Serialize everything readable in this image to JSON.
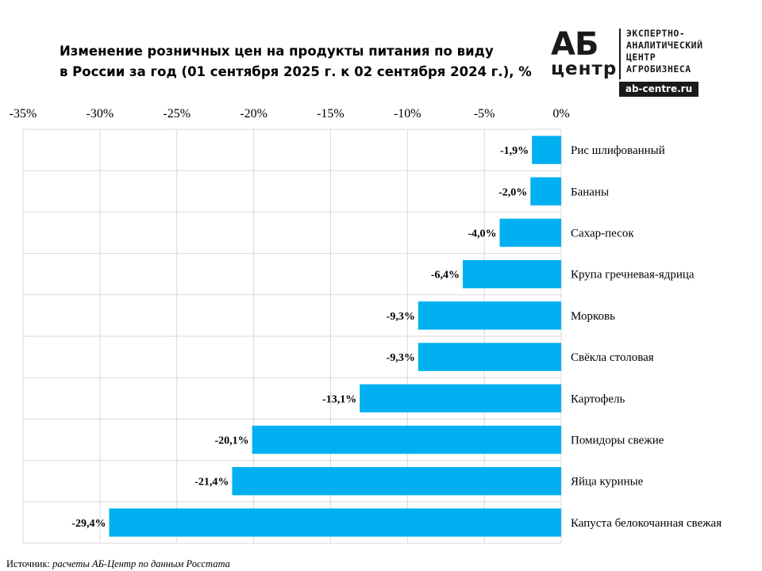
{
  "title_lines": [
    "Изменение розничных цен на продукты питания по виду",
    "в России за год (01 сентября 2025 г. к 02 сентября 2024 г.), %"
  ],
  "logo": {
    "mark_top": "АБ",
    "mark_bottom": "центр",
    "lines": [
      "ЭКСПЕРТНО-",
      "АНАЛИТИЧЕСКИЙ",
      "ЦЕНТР",
      "АГРОБИЗНЕСА"
    ],
    "url": "ab-centre.ru"
  },
  "source": {
    "label": "Источник:",
    "text": " расчеты АБ-Центр по данным Росстата"
  },
  "colors": {
    "bar": "#00b0f0",
    "grid": "#d9d9d9"
  },
  "chart_data": {
    "type": "bar",
    "orientation": "horizontal",
    "x_axis_position": "top",
    "xlim": [
      -35,
      0
    ],
    "x_ticks": [
      -35,
      -30,
      -25,
      -20,
      -15,
      -10,
      -5,
      0
    ],
    "x_tick_labels": [
      "-35%",
      "-30%",
      "-25%",
      "-20%",
      "-15%",
      "-10%",
      "-5%",
      "0%"
    ],
    "grid": true,
    "categories": [
      "Рис шлифованный",
      "Бананы",
      "Сахар-песок",
      "Крупа гречневая-ядрица",
      "Морковь",
      "Свёкла столовая",
      "Картофель",
      "Помидоры свежие",
      "Яйца куриные",
      "Капуста белокочанная свежая"
    ],
    "values": [
      -1.9,
      -2.0,
      -4.0,
      -6.4,
      -9.3,
      -9.3,
      -13.1,
      -20.1,
      -21.4,
      -29.4
    ],
    "data_labels": [
      "-1,9%",
      "-2,0%",
      "-4,0%",
      "-6,4%",
      "-9,3%",
      "-9,3%",
      "-13,1%",
      "-20,1%",
      "-21,4%",
      "-29,4%"
    ]
  }
}
